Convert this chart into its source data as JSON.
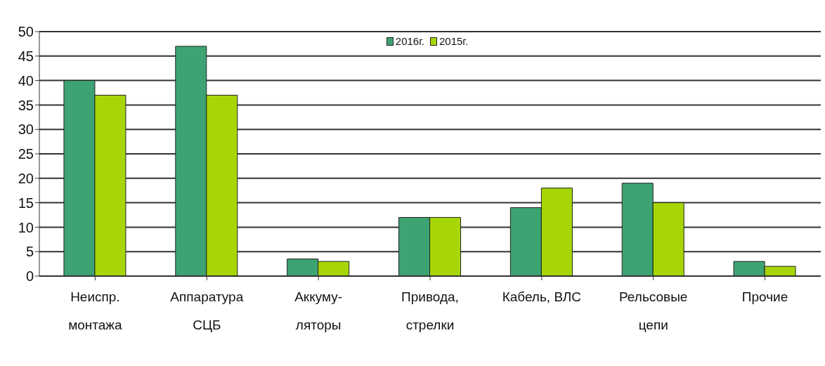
{
  "chart_data": {
    "type": "bar",
    "categories": [
      "Неиспр.\nмонтажа",
      "Аппаратура\nСЦБ",
      "Аккуму-\nляторы",
      "Привода,\nстрелки",
      "Кабель, ВЛС",
      "Рельсовые\nцепи",
      "Прочие"
    ],
    "series": [
      {
        "name": "2016г.",
        "color": "#3da372",
        "values": [
          40,
          47,
          3.5,
          12,
          14,
          19,
          3
        ]
      },
      {
        "name": "2015г.",
        "color": "#a6d608",
        "values": [
          37,
          37,
          3,
          12,
          18,
          15,
          2
        ]
      }
    ],
    "ylim": [
      0,
      50
    ],
    "yticks": [
      0,
      5,
      10,
      15,
      20,
      25,
      30,
      35,
      40,
      45,
      50
    ],
    "grid": "y",
    "legend": "top"
  }
}
